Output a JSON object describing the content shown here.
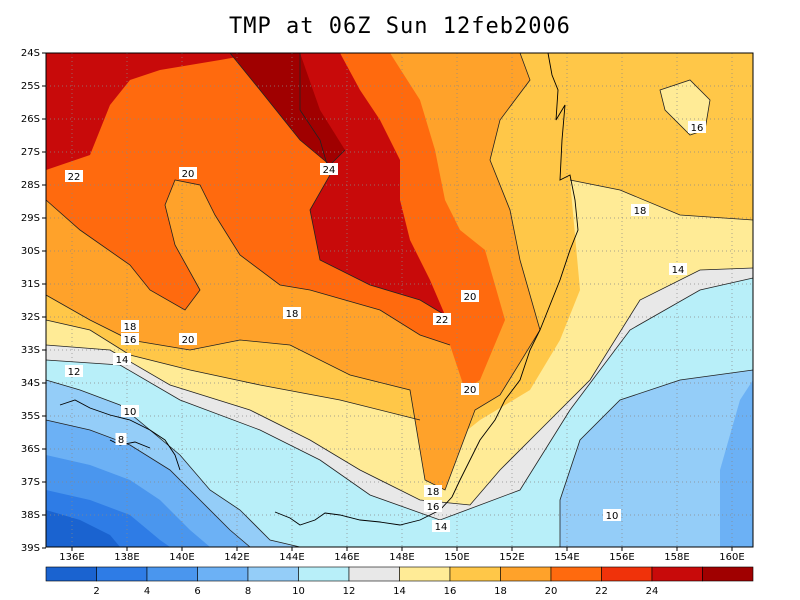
{
  "title": "TMP at 06Z Sun 12feb2006",
  "lat_labels": [
    "24S",
    "25S",
    "26S",
    "27S",
    "28S",
    "29S",
    "30S",
    "31S",
    "32S",
    "33S",
    "34S",
    "35S",
    "36S",
    "37S",
    "38S",
    "39S"
  ],
  "lon_labels": [
    "136E",
    "138E",
    "140E",
    "142E",
    "144E",
    "146E",
    "148E",
    "150E",
    "152E",
    "154E",
    "156E",
    "158E",
    "160E"
  ],
  "colorbar": {
    "colors": [
      "#1A63D0",
      "#2E7CE6",
      "#4A96EE",
      "#6CB1F5",
      "#94CDF8",
      "#B8EFF9",
      "#E8E8E8",
      "#FFEB96",
      "#FFC748",
      "#FFA22A",
      "#FF6A0E",
      "#F0320A",
      "#C80A0A",
      "#A00000"
    ],
    "labels": [
      "2",
      "4",
      "6",
      "8",
      "10",
      "12",
      "14",
      "16",
      "18",
      "20",
      "22",
      "24"
    ]
  },
  "contour_labels": [
    {
      "text": "24",
      "id": "contour-label-24"
    },
    {
      "text": "22",
      "id": "contour-label-22-west"
    },
    {
      "text": "20",
      "id": "contour-label-20-north"
    },
    {
      "text": "18",
      "id": "contour-label-18-mid"
    },
    {
      "text": "16",
      "id": "contour-label-16-northeast"
    },
    {
      "text": "18",
      "id": "contour-label-18-east"
    },
    {
      "text": "14",
      "id": "contour-label-14-east"
    },
    {
      "text": "20",
      "id": "contour-label-20-east"
    },
    {
      "text": "22",
      "id": "contour-label-22-east"
    },
    {
      "text": "20",
      "id": "contour-label-20-south"
    },
    {
      "text": "18",
      "id": "contour-label-18-west"
    },
    {
      "text": "16",
      "id": "contour-label-16-west"
    },
    {
      "text": "14",
      "id": "contour-label-14-west"
    },
    {
      "text": "12",
      "id": "contour-label-12-west"
    },
    {
      "text": "10",
      "id": "contour-label-10-west"
    },
    {
      "text": "8",
      "id": "contour-label-8-west"
    },
    {
      "text": "20",
      "id": "contour-label-20-southwest"
    },
    {
      "text": "18",
      "id": "contour-label-18-south"
    },
    {
      "text": "16",
      "id": "contour-label-16-south"
    },
    {
      "text": "14",
      "id": "contour-label-14-south"
    },
    {
      "text": "10",
      "id": "contour-label-10-southeast"
    }
  ]
}
